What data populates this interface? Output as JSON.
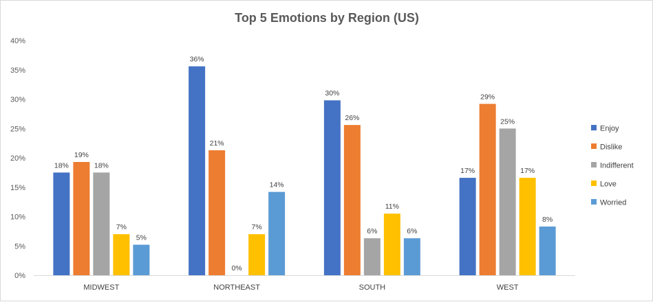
{
  "chart_data": {
    "type": "bar",
    "title": "Top 5 Emotions by Region (US)",
    "categories": [
      "MIDWEST",
      "NORTHEAST",
      "SOUTH",
      "WEST"
    ],
    "series": [
      {
        "name": "Enjoy",
        "color": "#4472C4",
        "values": [
          17.5,
          35.6,
          29.8,
          16.6
        ],
        "labels": [
          "18%",
          "36%",
          "30%",
          "17%"
        ]
      },
      {
        "name": "Dislike",
        "color": "#ED7D31",
        "values": [
          19.3,
          21.3,
          25.6,
          29.2
        ],
        "labels": [
          "19%",
          "21%",
          "26%",
          "29%"
        ]
      },
      {
        "name": "Indifferent",
        "color": "#A5A5A5",
        "values": [
          17.5,
          0.0,
          6.3,
          25.0
        ],
        "labels": [
          "18%",
          "0%",
          "6%",
          "25%"
        ]
      },
      {
        "name": "Love",
        "color": "#FFC000",
        "values": [
          7.0,
          7.0,
          10.5,
          16.6
        ],
        "labels": [
          "7%",
          "7%",
          "11%",
          "17%"
        ]
      },
      {
        "name": "Worried",
        "color": "#5B9BD5",
        "values": [
          5.2,
          14.2,
          6.3,
          8.3
        ],
        "labels": [
          "5%",
          "14%",
          "6%",
          "8%"
        ]
      }
    ],
    "ylim": [
      0,
      40
    ],
    "yticks": [
      0,
      5,
      10,
      15,
      20,
      25,
      30,
      35,
      40
    ],
    "ytick_labels": [
      "0%",
      "5%",
      "10%",
      "15%",
      "20%",
      "25%",
      "30%",
      "35%",
      "40%"
    ],
    "grid": false,
    "legend_position": "right"
  }
}
